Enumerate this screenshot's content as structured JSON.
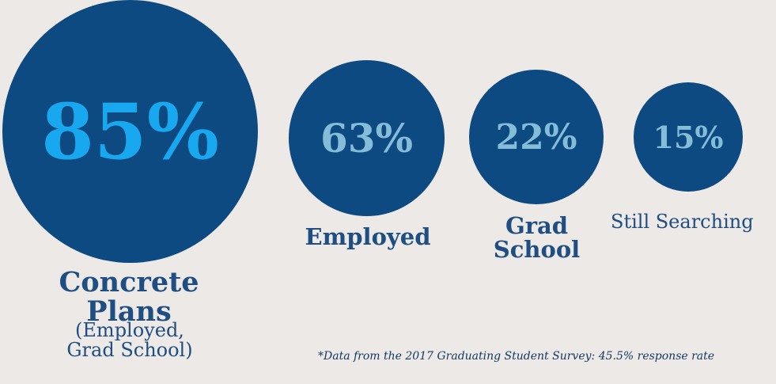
{
  "chart_data": {
    "type": "bubble",
    "items": [
      {
        "name": "Concrete Plans",
        "label_lines": [
          "Concrete",
          "Plans"
        ],
        "sublabel_lines": [
          "(Employed,",
          "Grad School)"
        ],
        "percent_text": "85%",
        "value": 85,
        "fill_color": "#0e4a82",
        "text_color": "#17a8f0"
      },
      {
        "name": "Employed",
        "label_lines": [
          "Employed"
        ],
        "percent_text": "63%",
        "value": 63,
        "fill_color": "#0e4a82",
        "text_color": "#84bdd8"
      },
      {
        "name": "Grad School",
        "label_lines": [
          "Grad",
          "School"
        ],
        "percent_text": "22%",
        "value": 22,
        "fill_color": "#0e4a82",
        "text_color": "#84bdd8"
      },
      {
        "name": "Still Searching",
        "label_lines": [
          "Still Searching"
        ],
        "percent_text": "15%",
        "value": 15,
        "fill_color": "#0e4a82",
        "text_color": "#84bdd8"
      }
    ],
    "footnote": "*Data from the 2017 Graduating Student Survey: 45.5% response rate"
  }
}
